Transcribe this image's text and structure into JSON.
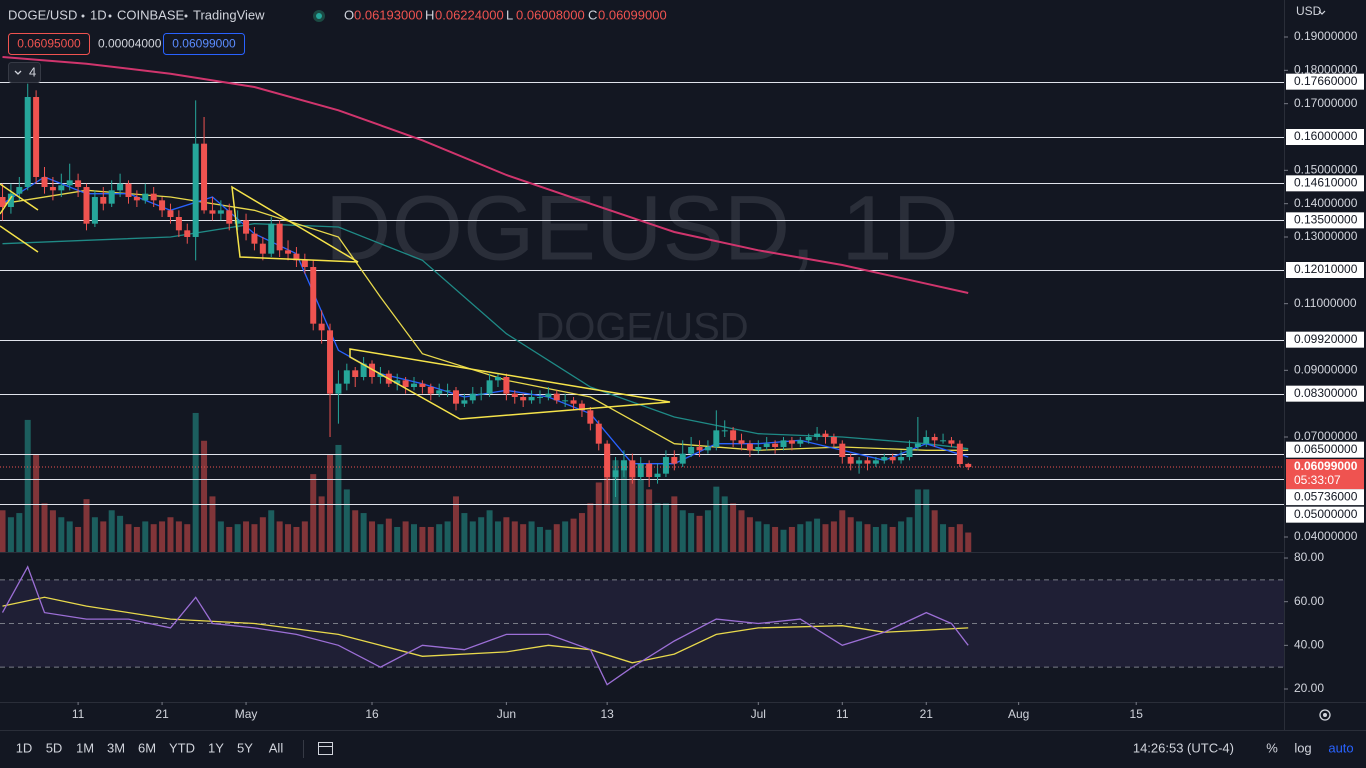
{
  "header": {
    "symbol": "DOGE/USD",
    "interval": "1D",
    "exchange": "COINBASE",
    "source": "TradingView",
    "ohlc": [
      {
        "key": "O",
        "value": "0.06193000"
      },
      {
        "key": "H",
        "value": "0.06224000"
      },
      {
        "key": "L",
        "value": "0.06008000"
      },
      {
        "key": "C",
        "value": "0.06099000"
      }
    ],
    "bid": "0.06095000",
    "spread": "0.00004000",
    "ask": "0.06099000",
    "indicators_count": "4"
  },
  "currency": "USD",
  "watermark": {
    "main": "DOGEUSD, 1D",
    "sub": "DOGE/USD"
  },
  "chart_data": {
    "type": "candlestick",
    "ohlc": [
      [
        0.142,
        0.146,
        0.135,
        0.139
      ],
      [
        0.139,
        0.146,
        0.137,
        0.143
      ],
      [
        0.143,
        0.148,
        0.141,
        0.145
      ],
      [
        0.145,
        0.176,
        0.144,
        0.172
      ],
      [
        0.172,
        0.174,
        0.146,
        0.148
      ],
      [
        0.148,
        0.151,
        0.143,
        0.145
      ],
      [
        0.145,
        0.148,
        0.141,
        0.144
      ],
      [
        0.144,
        0.149,
        0.142,
        0.1455
      ],
      [
        0.1455,
        0.152,
        0.144,
        0.147
      ],
      [
        0.147,
        0.149,
        0.142,
        0.145
      ],
      [
        0.145,
        0.146,
        0.132,
        0.134
      ],
      [
        0.134,
        0.144,
        0.133,
        0.142
      ],
      [
        0.142,
        0.145,
        0.138,
        0.14
      ],
      [
        0.14,
        0.147,
        0.139,
        0.144
      ],
      [
        0.144,
        0.149,
        0.142,
        0.146
      ],
      [
        0.146,
        0.147,
        0.14,
        0.142
      ],
      [
        0.142,
        0.144,
        0.139,
        0.141
      ],
      [
        0.141,
        0.146,
        0.14,
        0.143
      ],
      [
        0.143,
        0.145,
        0.139,
        0.141
      ],
      [
        0.141,
        0.142,
        0.136,
        0.138
      ],
      [
        0.138,
        0.14,
        0.134,
        0.136
      ],
      [
        0.136,
        0.138,
        0.13,
        0.132
      ],
      [
        0.132,
        0.134,
        0.128,
        0.13
      ],
      [
        0.13,
        0.171,
        0.123,
        0.158
      ],
      [
        0.158,
        0.166,
        0.137,
        0.138
      ],
      [
        0.138,
        0.142,
        0.135,
        0.137
      ],
      [
        0.137,
        0.141,
        0.135,
        0.138
      ],
      [
        0.138,
        0.14,
        0.132,
        0.134
      ],
      [
        0.134,
        0.138,
        0.132,
        0.135
      ],
      [
        0.135,
        0.137,
        0.129,
        0.131
      ],
      [
        0.131,
        0.133,
        0.126,
        0.128
      ],
      [
        0.128,
        0.13,
        0.123,
        0.125
      ],
      [
        0.125,
        0.136,
        0.124,
        0.134
      ],
      [
        0.134,
        0.135,
        0.124,
        0.126
      ],
      [
        0.126,
        0.129,
        0.123,
        0.125
      ],
      [
        0.125,
        0.127,
        0.121,
        0.123
      ],
      [
        0.123,
        0.125,
        0.119,
        0.121
      ],
      [
        0.121,
        0.123,
        0.102,
        0.104
      ],
      [
        0.104,
        0.108,
        0.098,
        0.102
      ],
      [
        0.102,
        0.104,
        0.07,
        0.083
      ],
      [
        0.083,
        0.09,
        0.074,
        0.086
      ],
      [
        0.086,
        0.092,
        0.084,
        0.09
      ],
      [
        0.09,
        0.091,
        0.085,
        0.088
      ],
      [
        0.088,
        0.094,
        0.087,
        0.092
      ],
      [
        0.092,
        0.093,
        0.086,
        0.088
      ],
      [
        0.088,
        0.091,
        0.086,
        0.089
      ],
      [
        0.089,
        0.09,
        0.085,
        0.086
      ],
      [
        0.086,
        0.089,
        0.084,
        0.087
      ],
      [
        0.087,
        0.088,
        0.083,
        0.085
      ],
      [
        0.085,
        0.088,
        0.084,
        0.086
      ],
      [
        0.086,
        0.087,
        0.083,
        0.085
      ],
      [
        0.085,
        0.086,
        0.081,
        0.083
      ],
      [
        0.083,
        0.086,
        0.082,
        0.084
      ],
      [
        0.084,
        0.086,
        0.082,
        0.084
      ],
      [
        0.084,
        0.085,
        0.078,
        0.08
      ],
      [
        0.08,
        0.083,
        0.079,
        0.081
      ],
      [
        0.081,
        0.085,
        0.08,
        0.083
      ],
      [
        0.083,
        0.085,
        0.081,
        0.083
      ],
      [
        0.083,
        0.089,
        0.082,
        0.087
      ],
      [
        0.087,
        0.089,
        0.085,
        0.088
      ],
      [
        0.088,
        0.089,
        0.081,
        0.083
      ],
      [
        0.083,
        0.084,
        0.08,
        0.082
      ],
      [
        0.082,
        0.083,
        0.079,
        0.081
      ],
      [
        0.081,
        0.084,
        0.08,
        0.082
      ],
      [
        0.082,
        0.084,
        0.08,
        0.082
      ],
      [
        0.082,
        0.085,
        0.081,
        0.083
      ],
      [
        0.083,
        0.084,
        0.08,
        0.081
      ],
      [
        0.081,
        0.083,
        0.079,
        0.081
      ],
      [
        0.081,
        0.082,
        0.078,
        0.08
      ],
      [
        0.08,
        0.081,
        0.076,
        0.078
      ],
      [
        0.078,
        0.079,
        0.072,
        0.074
      ],
      [
        0.074,
        0.075,
        0.066,
        0.068
      ],
      [
        0.068,
        0.069,
        0.05,
        0.058
      ],
      [
        0.058,
        0.064,
        0.052,
        0.06
      ],
      [
        0.06,
        0.066,
        0.058,
        0.063
      ],
      [
        0.063,
        0.065,
        0.056,
        0.058
      ],
      [
        0.058,
        0.064,
        0.057,
        0.062
      ],
      [
        0.062,
        0.063,
        0.055,
        0.058
      ],
      [
        0.058,
        0.062,
        0.056,
        0.059
      ],
      [
        0.059,
        0.066,
        0.058,
        0.064
      ],
      [
        0.064,
        0.066,
        0.06,
        0.062
      ],
      [
        0.062,
        0.069,
        0.061,
        0.065
      ],
      [
        0.065,
        0.07,
        0.064,
        0.067
      ],
      [
        0.067,
        0.069,
        0.064,
        0.066
      ],
      [
        0.066,
        0.069,
        0.065,
        0.067
      ],
      [
        0.067,
        0.078,
        0.066,
        0.072
      ],
      [
        0.072,
        0.075,
        0.07,
        0.072
      ],
      [
        0.072,
        0.073,
        0.067,
        0.069
      ],
      [
        0.069,
        0.071,
        0.066,
        0.068
      ],
      [
        0.068,
        0.069,
        0.064,
        0.066
      ],
      [
        0.066,
        0.069,
        0.065,
        0.067
      ],
      [
        0.067,
        0.07,
        0.066,
        0.068
      ],
      [
        0.068,
        0.069,
        0.065,
        0.067
      ],
      [
        0.067,
        0.07,
        0.066,
        0.069
      ],
      [
        0.069,
        0.07,
        0.066,
        0.068
      ],
      [
        0.068,
        0.07,
        0.067,
        0.069
      ],
      [
        0.069,
        0.071,
        0.068,
        0.07
      ],
      [
        0.07,
        0.073,
        0.069,
        0.071
      ],
      [
        0.071,
        0.072,
        0.068,
        0.07
      ],
      [
        0.07,
        0.071,
        0.067,
        0.068
      ],
      [
        0.068,
        0.069,
        0.062,
        0.064
      ],
      [
        0.064,
        0.065,
        0.06,
        0.062
      ],
      [
        0.062,
        0.064,
        0.059,
        0.063
      ],
      [
        0.063,
        0.064,
        0.06,
        0.062
      ],
      [
        0.062,
        0.064,
        0.061,
        0.063
      ],
      [
        0.063,
        0.065,
        0.062,
        0.064
      ],
      [
        0.064,
        0.065,
        0.062,
        0.063
      ],
      [
        0.063,
        0.066,
        0.062,
        0.064
      ],
      [
        0.064,
        0.069,
        0.063,
        0.067
      ],
      [
        0.067,
        0.076,
        0.066,
        0.068
      ],
      [
        0.068,
        0.072,
        0.067,
        0.07
      ],
      [
        0.07,
        0.071,
        0.067,
        0.069
      ],
      [
        0.069,
        0.071,
        0.068,
        0.069
      ],
      [
        0.069,
        0.07,
        0.067,
        0.068
      ],
      [
        0.068,
        0.069,
        0.061,
        0.0619
      ],
      [
        0.06193,
        0.06224,
        0.06008,
        0.06099
      ]
    ],
    "volume": [
      30,
      25,
      28,
      95,
      70,
      35,
      30,
      25,
      22,
      18,
      38,
      25,
      22,
      30,
      26,
      20,
      18,
      22,
      20,
      22,
      25,
      22,
      20,
      100,
      80,
      40,
      22,
      18,
      20,
      22,
      20,
      25,
      30,
      22,
      20,
      18,
      22,
      56,
      40,
      70,
      77,
      45,
      30,
      28,
      22,
      20,
      24,
      18,
      22,
      20,
      18,
      18,
      20,
      22,
      40,
      28,
      22,
      25,
      30,
      22,
      25,
      22,
      20,
      22,
      18,
      16,
      20,
      22,
      24,
      28,
      35,
      50,
      72,
      66,
      66,
      58,
      52,
      45,
      35,
      35,
      40,
      30,
      28,
      26,
      30,
      47,
      40,
      35,
      30,
      25,
      22,
      20,
      18,
      16,
      18,
      20,
      22,
      24,
      20,
      22,
      30,
      25,
      22,
      20,
      18,
      20,
      18,
      22,
      25,
      45,
      45,
      30,
      20,
      18,
      20,
      14
    ],
    "volume_lim": [
      0,
      397
    ],
    "up_color": "#26a69a",
    "down_color": "#ef5350",
    "xlim": [
      -0.3,
      152.6
    ],
    "ylim": [
      0.0355,
      0.2011
    ],
    "xticks": [
      {
        "value": 9,
        "label": "11"
      },
      {
        "value": 19,
        "label": "21"
      },
      {
        "value": 29,
        "label": "May"
      },
      {
        "value": 44,
        "label": "16"
      },
      {
        "value": 60,
        "label": "Jun"
      },
      {
        "value": 72,
        "label": "13"
      },
      {
        "value": 90,
        "label": "Jul"
      },
      {
        "value": 100,
        "label": "11"
      },
      {
        "value": 110,
        "label": "21"
      },
      {
        "value": 121,
        "label": "Aug"
      },
      {
        "value": 135,
        "label": "15"
      }
    ],
    "yticks": [
      {
        "value": 0.19,
        "label": "0.19000000"
      },
      {
        "value": 0.18,
        "label": "0.18000000"
      },
      {
        "value": 0.17,
        "label": "0.17000000"
      },
      {
        "value": 0.15,
        "label": "0.15000000"
      },
      {
        "value": 0.14,
        "label": "0.14000000"
      },
      {
        "value": 0.13,
        "label": "0.13000000"
      },
      {
        "value": 0.11,
        "label": "0.11000000"
      },
      {
        "value": 0.09,
        "label": "0.09000000"
      },
      {
        "value": 0.07,
        "label": "0.07000000"
      },
      {
        "value": 0.04,
        "label": "0.04000000"
      }
    ],
    "levels": [
      {
        "value": 0.1766,
        "label": "0.17660000"
      },
      {
        "value": 0.16,
        "label": "0.16000000"
      },
      {
        "value": 0.1461,
        "label": "0.14610000"
      },
      {
        "value": 0.135,
        "label": "0.13500000"
      },
      {
        "value": 0.1201,
        "label": "0.12010000"
      },
      {
        "value": 0.0992,
        "label": "0.09920000"
      },
      {
        "value": 0.083,
        "label": "0.08300000"
      },
      {
        "value": 0.065,
        "label": "0.06500000"
      },
      {
        "value": 0.05736,
        "label": "0.05736000"
      },
      {
        "value": 0.05,
        "label": "0.05000000"
      }
    ],
    "last_price": {
      "value": 0.06099,
      "label": "0.06099000",
      "countdown": "05:33:07"
    },
    "ma_lines": [
      {
        "color": "#d0356d",
        "x": [
          0,
          10,
          20,
          30,
          40,
          50,
          60,
          70,
          80,
          90,
          100,
          110,
          115
        ],
        "values": [
          0.184,
          0.182,
          0.179,
          0.175,
          0.168,
          0.159,
          0.1486,
          0.14,
          0.1315,
          0.126,
          0.1216,
          0.116,
          0.1132
        ]
      },
      {
        "color": "#1f8a86",
        "x": [
          0,
          10,
          20,
          30,
          40,
          50,
          60,
          70,
          80,
          90,
          100,
          110,
          115
        ],
        "values": [
          0.128,
          0.129,
          0.13,
          0.134,
          0.133,
          0.123,
          0.101,
          0.085,
          0.076,
          0.071,
          0.07,
          0.068,
          0.0665
        ]
      },
      {
        "color": "#e8d94c",
        "x": [
          0,
          10,
          20,
          30,
          40,
          45,
          50,
          60,
          70,
          75,
          80,
          90,
          100,
          110,
          115
        ],
        "values": [
          0.14,
          0.144,
          0.142,
          0.138,
          0.13,
          0.112,
          0.095,
          0.087,
          0.082,
          0.075,
          0.068,
          0.066,
          0.067,
          0.066,
          0.066
        ]
      },
      {
        "color": "#2962ff",
        "x": [
          0,
          5,
          10,
          15,
          20,
          25,
          30,
          35,
          40,
          45,
          50,
          55,
          60,
          65,
          70,
          75,
          80,
          85,
          90,
          95,
          100,
          105,
          110,
          115
        ],
        "values": [
          0.14,
          0.148,
          0.143,
          0.143,
          0.138,
          0.142,
          0.131,
          0.125,
          0.096,
          0.089,
          0.086,
          0.082,
          0.084,
          0.082,
          0.077,
          0.062,
          0.062,
          0.068,
          0.068,
          0.069,
          0.066,
          0.063,
          0.068,
          0.064
        ]
      }
    ],
    "rsi": {
      "ylim": [
        14.05,
        82.3
      ],
      "yticks": [
        {
          "value": 80,
          "label": "80.00"
        },
        {
          "value": 60,
          "label": "60.00"
        },
        {
          "value": 40,
          "label": "40.00"
        },
        {
          "value": 20,
          "label": "20.00"
        }
      ],
      "bands": [
        70,
        50,
        30
      ],
      "line_color": "#9c6fd6",
      "ma_color": "#e8d94c",
      "x": [
        0,
        3,
        5,
        10,
        15,
        20,
        23,
        25,
        30,
        35,
        40,
        45,
        50,
        55,
        60,
        65,
        70,
        72,
        75,
        80,
        85,
        90,
        95,
        100,
        105,
        110,
        113,
        115
      ],
      "values": [
        55,
        76,
        55,
        52,
        52,
        48,
        62,
        50,
        48,
        45,
        40,
        30,
        40,
        38,
        45,
        45,
        38,
        22,
        30,
        42,
        52,
        50,
        52,
        40,
        46,
        55,
        50,
        40
      ],
      "ma_x": [
        0,
        5,
        10,
        20,
        30,
        40,
        45,
        50,
        60,
        65,
        70,
        75,
        80,
        85,
        90,
        100,
        105,
        110,
        115
      ],
      "ma": [
        58,
        62,
        58,
        52,
        50,
        45,
        40,
        35,
        37,
        40,
        38,
        32,
        36,
        45,
        48,
        49,
        46,
        47,
        48
      ]
    }
  },
  "toolbar": {
    "ranges": [
      "1D",
      "5D",
      "1M",
      "3M",
      "6M",
      "YTD",
      "1Y",
      "5Y",
      "All"
    ],
    "time": "14:26:53 (UTC-4)",
    "options": [
      "%",
      "log",
      "auto"
    ]
  }
}
